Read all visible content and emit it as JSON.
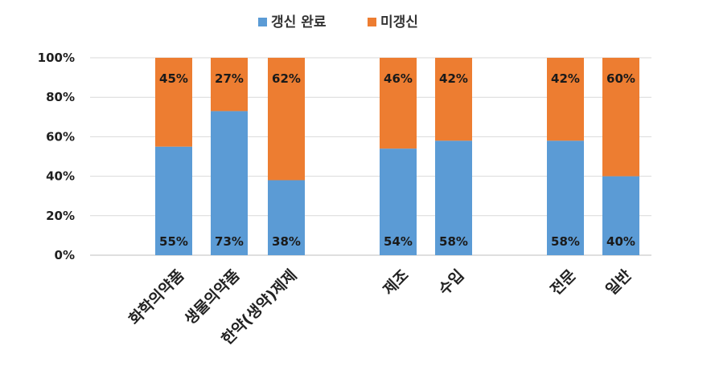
{
  "chart_data": {
    "type": "bar",
    "stacked": true,
    "percent": true,
    "title": "",
    "xlabel": "",
    "ylabel": "",
    "ylim": [
      0,
      100
    ],
    "y_ticks": [
      "0%",
      "20%",
      "40%",
      "60%",
      "80%",
      "100%"
    ],
    "grid": true,
    "legend_position": "top",
    "categories": [
      "화학의약품",
      "생물의약품",
      "한약(생약)제제",
      "제조",
      "수입",
      "전문",
      "일반"
    ],
    "groups": [
      [
        "화학의약품",
        "생물의약품",
        "한약(생약)제제"
      ],
      [
        "제조",
        "수입"
      ],
      [
        "전문",
        "일반"
      ]
    ],
    "series": [
      {
        "name": "갱신 완료",
        "color": "#5b9bd5",
        "values": [
          55,
          73,
          38,
          54,
          58,
          58,
          40
        ],
        "labels": [
          "55%",
          "73%",
          "38%",
          "54%",
          "58%",
          "58%",
          "40%"
        ]
      },
      {
        "name": "미갱신",
        "color": "#ed7d31",
        "values": [
          45,
          27,
          62,
          46,
          42,
          42,
          60
        ],
        "labels": [
          "45%",
          "27%",
          "62%",
          "46%",
          "42%",
          "42%",
          "60%"
        ]
      }
    ]
  }
}
